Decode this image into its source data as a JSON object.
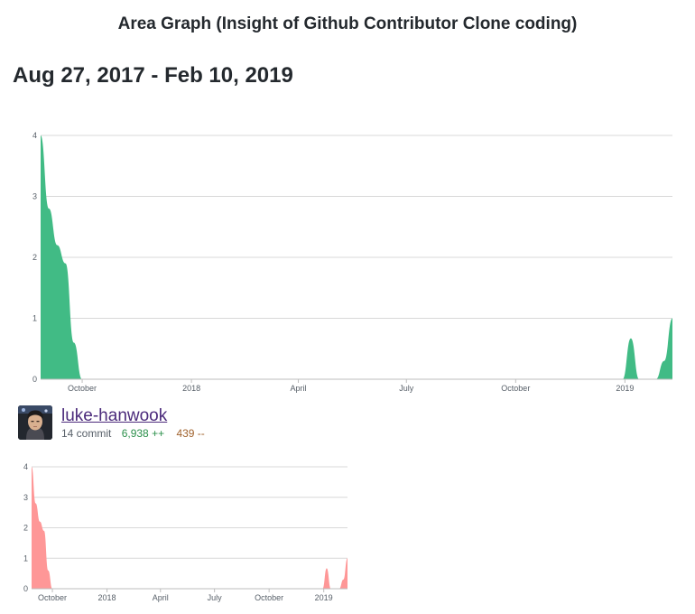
{
  "page": {
    "title": "Area Graph (Insight of Github Contributor Clone coding)",
    "date_range": "Aug 27, 2017 - Feb 10, 2019"
  },
  "contributor": {
    "username": "luke-hanwook",
    "commits": "14 commit",
    "additions": "6,938 ++",
    "deletions": "439 --"
  },
  "colors": {
    "total_fill": "#41bb85",
    "user_fill": "#fe9797",
    "grid": "#d8d8d8"
  },
  "chart_data": [
    {
      "type": "area",
      "title": "",
      "xlabel": "",
      "ylabel": "",
      "x_start": "2017-08-27",
      "x_end": "2019-02-10",
      "ylim": [
        0,
        4
      ],
      "y_ticks": [
        "0",
        "1",
        "2",
        "3",
        "4"
      ],
      "x_ticks": [
        {
          "label": "October",
          "date": "2017-10-01"
        },
        {
          "label": "2018",
          "date": "2018-01-01"
        },
        {
          "label": "April",
          "date": "2018-04-01"
        },
        {
          "label": "July",
          "date": "2018-07-01"
        },
        {
          "label": "October",
          "date": "2018-10-01"
        },
        {
          "label": "2019",
          "date": "2019-01-01"
        }
      ],
      "grid": true,
      "series": [
        {
          "values": [
            {
              "date": "2017-08-27",
              "value": 4
            },
            {
              "date": "2017-09-03",
              "value": 2.8
            },
            {
              "date": "2017-09-10",
              "value": 2.2
            },
            {
              "date": "2017-09-17",
              "value": 1.9
            },
            {
              "date": "2017-09-24",
              "value": 0.6
            },
            {
              "date": "2017-10-01",
              "value": 0
            },
            {
              "date": "2018-12-23",
              "value": 0
            },
            {
              "date": "2018-12-30",
              "value": 0
            },
            {
              "date": "2019-01-06",
              "value": 0.67
            },
            {
              "date": "2019-01-13",
              "value": 0
            },
            {
              "date": "2019-01-20",
              "value": 0
            },
            {
              "date": "2019-01-27",
              "value": 0
            },
            {
              "date": "2019-02-03",
              "value": 0.3
            },
            {
              "date": "2019-02-10",
              "value": 1
            }
          ]
        }
      ]
    },
    {
      "type": "area",
      "title": "",
      "xlabel": "",
      "ylabel": "",
      "x_start": "2017-08-27",
      "x_end": "2019-02-10",
      "ylim": [
        0,
        4
      ],
      "y_ticks": [
        "0",
        "1",
        "2",
        "3",
        "4"
      ],
      "x_ticks": [
        {
          "label": "October",
          "date": "2017-10-01"
        },
        {
          "label": "2018",
          "date": "2018-01-01"
        },
        {
          "label": "April",
          "date": "2018-04-01"
        },
        {
          "label": "July",
          "date": "2018-07-01"
        },
        {
          "label": "October",
          "date": "2018-10-01"
        },
        {
          "label": "2019",
          "date": "2019-01-01"
        }
      ],
      "grid": true,
      "series": [
        {
          "values": [
            {
              "date": "2017-08-27",
              "value": 4
            },
            {
              "date": "2017-09-03",
              "value": 2.8
            },
            {
              "date": "2017-09-10",
              "value": 2.2
            },
            {
              "date": "2017-09-17",
              "value": 1.9
            },
            {
              "date": "2017-09-24",
              "value": 0.6
            },
            {
              "date": "2017-10-01",
              "value": 0
            },
            {
              "date": "2018-12-23",
              "value": 0
            },
            {
              "date": "2018-12-30",
              "value": 0
            },
            {
              "date": "2019-01-06",
              "value": 0.67
            },
            {
              "date": "2019-01-13",
              "value": 0
            },
            {
              "date": "2019-01-20",
              "value": 0
            },
            {
              "date": "2019-01-27",
              "value": 0
            },
            {
              "date": "2019-02-03",
              "value": 0.3
            },
            {
              "date": "2019-02-10",
              "value": 1
            }
          ]
        }
      ]
    }
  ]
}
